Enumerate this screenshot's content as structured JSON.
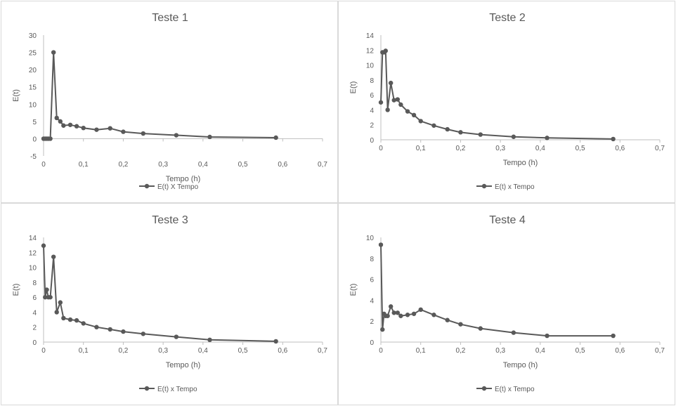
{
  "colors": {
    "series": "#595959",
    "axis": "#bfbfbf",
    "text": "#595959"
  },
  "chart_data": [
    {
      "type": "line",
      "title": "Teste 1",
      "xlabel": "Tempo (h)",
      "ylabel": "E(t)",
      "xlim": [
        0,
        0.7
      ],
      "ylim": [
        -5,
        30
      ],
      "xticks": [
        "0",
        "0,1",
        "0,2",
        "0,3",
        "0,4",
        "0,5",
        "0,6",
        "0,7"
      ],
      "yticks": [
        "-5",
        "0",
        "5",
        "10",
        "15",
        "20",
        "25",
        "30"
      ],
      "grid": false,
      "legend": "bottom",
      "series": [
        {
          "name": "E(t) X Tempo",
          "x": [
            0,
            0.004,
            0.008,
            0.012,
            0.017,
            0.025,
            0.033,
            0.042,
            0.05,
            0.067,
            0.083,
            0.1,
            0.133,
            0.167,
            0.2,
            0.25,
            0.333,
            0.417,
            0.583
          ],
          "y": [
            0,
            0,
            0,
            0,
            0,
            25,
            6,
            5,
            3.8,
            4,
            3.6,
            3.1,
            2.6,
            3,
            2,
            1.5,
            1,
            0.5,
            0.3
          ]
        }
      ]
    },
    {
      "type": "line",
      "title": "Teste 2",
      "xlabel": "Tempo (h)",
      "ylabel": "E(t)",
      "xlim": [
        0,
        0.7
      ],
      "ylim": [
        0,
        14
      ],
      "xticks": [
        "0",
        "0,1",
        "0,2",
        "0,3",
        "0,4",
        "0,5",
        "0,6",
        "0,7"
      ],
      "yticks": [
        "0",
        "2",
        "4",
        "6",
        "8",
        "10",
        "12",
        "14"
      ],
      "grid": false,
      "legend": "bottom",
      "series": [
        {
          "name": "E(t) x Tempo",
          "x": [
            0,
            0.004,
            0.008,
            0.012,
            0.017,
            0.025,
            0.033,
            0.042,
            0.05,
            0.067,
            0.083,
            0.1,
            0.133,
            0.167,
            0.2,
            0.25,
            0.333,
            0.417,
            0.583
          ],
          "y": [
            5,
            11.7,
            11.7,
            11.9,
            4,
            7.6,
            5.3,
            5.4,
            4.7,
            3.8,
            3.3,
            2.5,
            1.9,
            1.4,
            1,
            0.7,
            0.4,
            0.25,
            0.1
          ]
        }
      ]
    },
    {
      "type": "line",
      "title": "Teste 3",
      "xlabel": "Tempo (h)",
      "ylabel": "E(t)",
      "xlim": [
        0,
        0.7
      ],
      "ylim": [
        0,
        14
      ],
      "xticks": [
        "0",
        "0,1",
        "0,2",
        "0,3",
        "0,4",
        "0,5",
        "0,6",
        "0,7"
      ],
      "yticks": [
        "0",
        "2",
        "4",
        "6",
        "8",
        "10",
        "12",
        "14"
      ],
      "grid": false,
      "legend": "bottom",
      "series": [
        {
          "name": "E(t) x Tempo",
          "x": [
            0,
            0.004,
            0.008,
            0.012,
            0.017,
            0.025,
            0.033,
            0.042,
            0.05,
            0.067,
            0.083,
            0.1,
            0.133,
            0.167,
            0.2,
            0.25,
            0.333,
            0.417,
            0.583
          ],
          "y": [
            12.9,
            6,
            7,
            6,
            6,
            11.4,
            4,
            5.3,
            3.2,
            3,
            2.9,
            2.5,
            2,
            1.7,
            1.4,
            1.1,
            0.7,
            0.3,
            0.1
          ]
        }
      ]
    },
    {
      "type": "line",
      "title": "Teste 4",
      "xlabel": "Tempo (h)",
      "ylabel": "E(t)",
      "xlim": [
        0,
        0.7
      ],
      "ylim": [
        0,
        10
      ],
      "xticks": [
        "0",
        "0,1",
        "0,2",
        "0,3",
        "0,4",
        "0,5",
        "0,6",
        "0,7"
      ],
      "yticks": [
        "0",
        "2",
        "4",
        "6",
        "8",
        "10"
      ],
      "grid": false,
      "legend": "bottom",
      "series": [
        {
          "name": "E(t) x Tempo",
          "x": [
            0,
            0.004,
            0.008,
            0.012,
            0.017,
            0.025,
            0.033,
            0.042,
            0.05,
            0.067,
            0.083,
            0.1,
            0.133,
            0.167,
            0.2,
            0.25,
            0.333,
            0.417,
            0.583
          ],
          "y": [
            9.3,
            1.2,
            2.7,
            2.5,
            2.5,
            3.4,
            2.8,
            2.8,
            2.5,
            2.6,
            2.7,
            3.1,
            2.6,
            2.1,
            1.7,
            1.3,
            0.9,
            0.6,
            0.6
          ]
        }
      ]
    }
  ]
}
